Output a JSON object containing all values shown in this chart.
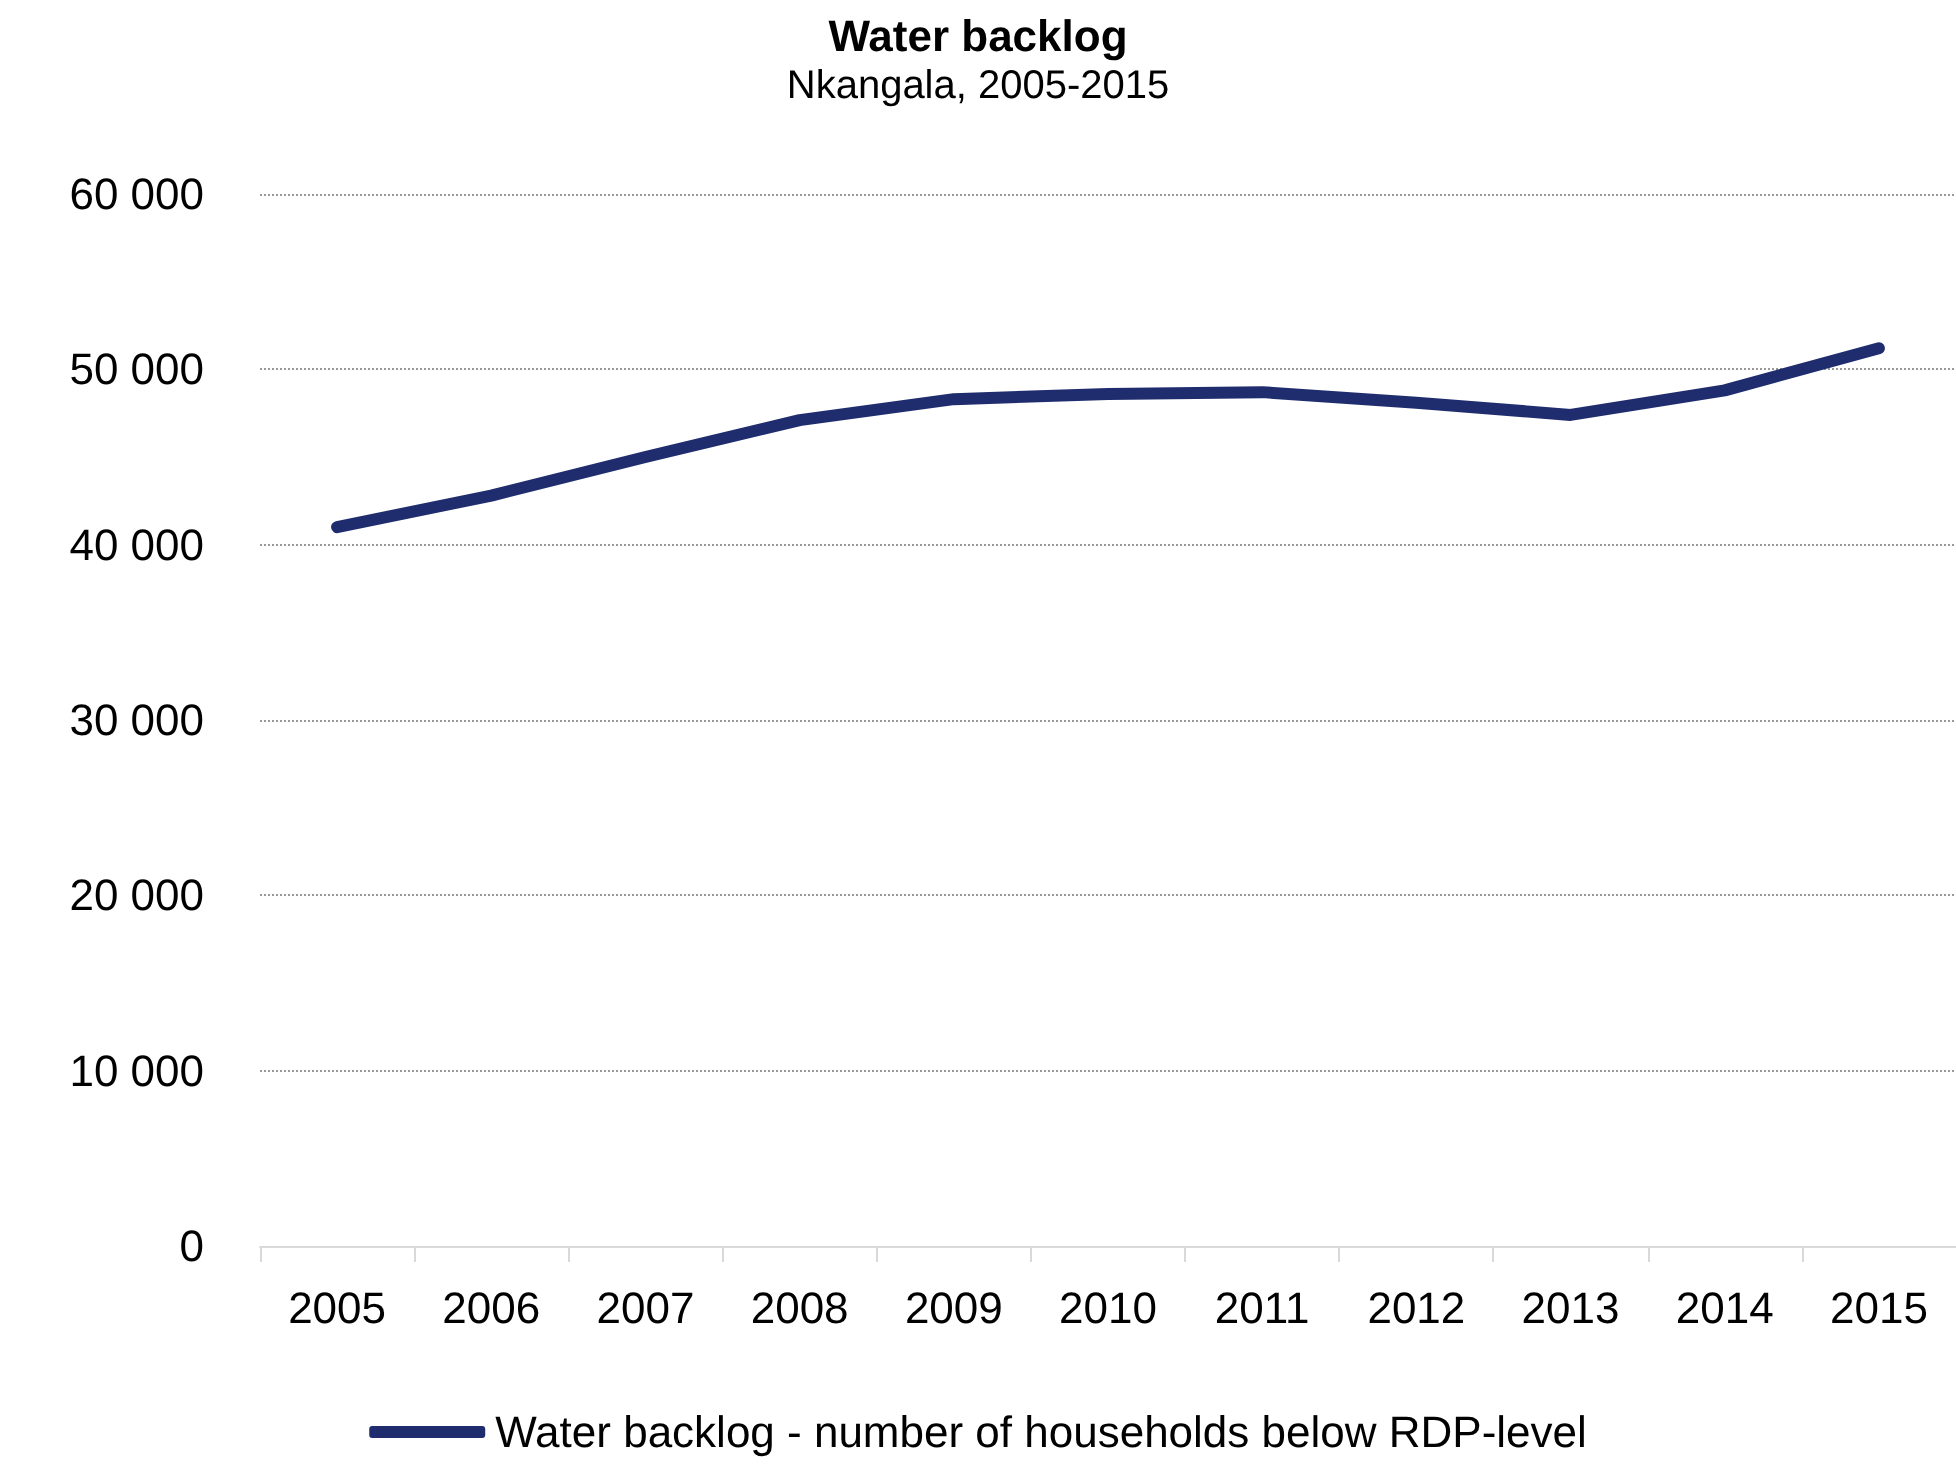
{
  "chart_data": {
    "type": "line",
    "title": "Water backlog",
    "subtitle": "Nkangala, 2005-2015",
    "categories": [
      "2005",
      "2006",
      "2007",
      "2008",
      "2009",
      "2010",
      "2011",
      "2012",
      "2013",
      "2014",
      "2015"
    ],
    "series": [
      {
        "name": "Water backlog - number of households below RDP-level",
        "color": "#1f2d6e",
        "values": [
          41000,
          42800,
          45000,
          47100,
          48300,
          48600,
          48700,
          48100,
          47400,
          48800,
          51200
        ]
      }
    ],
    "ylim": [
      0,
      60000
    ],
    "yticks": [
      {
        "value": 0,
        "label": "0"
      },
      {
        "value": 10000,
        "label": "10 000"
      },
      {
        "value": 20000,
        "label": "20 000"
      },
      {
        "value": 30000,
        "label": "30 000"
      },
      {
        "value": 40000,
        "label": "40 000"
      },
      {
        "value": 50000,
        "label": "50 000"
      },
      {
        "value": 60000,
        "label": "60 000"
      }
    ],
    "grid": "y",
    "legend": "bottom",
    "marker": "none",
    "line_style": "solid"
  }
}
